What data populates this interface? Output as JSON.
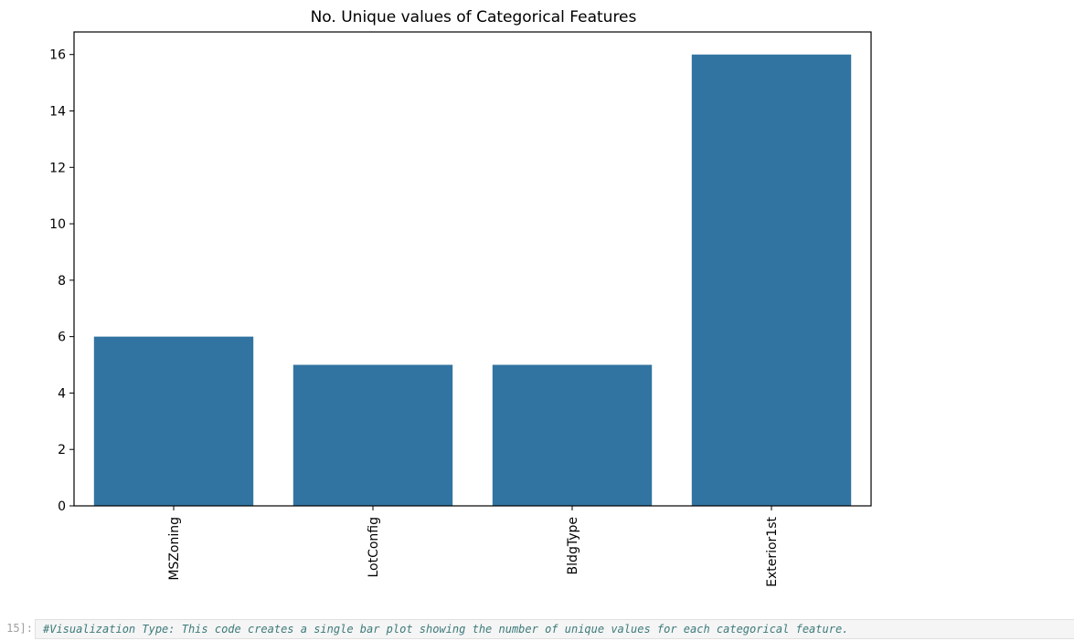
{
  "chart_data": {
    "type": "bar",
    "title": "No. Unique values of Categorical Features",
    "categories": [
      "MSZoning",
      "LotConfig",
      "BldgType",
      "Exterior1st"
    ],
    "values": [
      6,
      5,
      5,
      16
    ],
    "ylim": [
      0,
      16.8
    ],
    "yticks": [
      "0",
      "2",
      "4",
      "6",
      "8",
      "10",
      "12",
      "14",
      "16"
    ],
    "grid": false,
    "bar_color": "#3274a1"
  },
  "cell": {
    "prompt": "15]:",
    "code": "#Visualization Type: This code creates a single bar plot showing the number of unique values for each categorical feature."
  }
}
